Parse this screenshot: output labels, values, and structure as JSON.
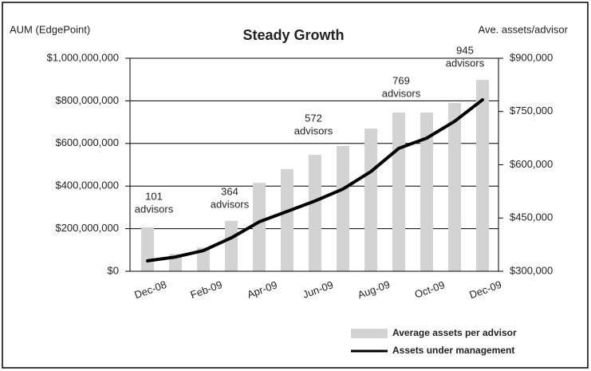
{
  "chart_data": {
    "type": "bar-line",
    "title": "Steady Growth",
    "y_label": "AUM (EdgePoint)",
    "y2_label": "Ave. assets/advisor",
    "categories": [
      "Dec-08",
      null,
      "Feb-09",
      null,
      "Apr-09",
      null,
      "Jun-09",
      null,
      "Aug-09",
      null,
      "Oct-09",
      null,
      "Dec-09"
    ],
    "series": [
      {
        "name": "Average assets per advisor",
        "color": "#d3d3d3",
        "axis": "y2",
        "type": "bar",
        "values": [
          424000,
          349000,
          367000,
          442000,
          549000,
          588000,
          628000,
          653000,
          702000,
          747000,
          747000,
          774000,
          839000
        ]
      },
      {
        "name": "Assets under management",
        "color": "#000000",
        "axis": "y",
        "type": "line",
        "values": [
          49000000,
          67000000,
          97000000,
          157000000,
          232000000,
          281000000,
          330000000,
          386000000,
          468000000,
          577000000,
          625000000,
          704000000,
          805000000
        ]
      }
    ],
    "ylim": [
      0,
      1000000000
    ],
    "yticks": [
      {
        "value": 0,
        "label": "$0"
      },
      {
        "value": 200000000,
        "label": "$200,000,000"
      },
      {
        "value": 400000000,
        "label": "$400,000,000"
      },
      {
        "value": 600000000,
        "label": "$600,000,000"
      },
      {
        "value": 800000000,
        "label": "$800,000,000"
      },
      {
        "value": 1000000000,
        "label": "$1,000,000,000"
      }
    ],
    "y2lim": [
      300000,
      900000
    ],
    "y2ticks": [
      {
        "value": 300000,
        "label": "$300,000"
      },
      {
        "value": 450000,
        "label": "$450,000"
      },
      {
        "value": 600000,
        "label": "$600,000"
      },
      {
        "value": 750000,
        "label": "$750,000"
      },
      {
        "value": 900000,
        "label": "$900,000"
      }
    ],
    "grid": true,
    "annotations": [
      {
        "lines": [
          "101",
          "advisors"
        ]
      },
      {
        "lines": [
          "364",
          "advisors"
        ]
      },
      {
        "lines": [
          "572",
          "advisors"
        ]
      },
      {
        "lines": [
          "769",
          "advisors"
        ]
      },
      {
        "lines": [
          "945",
          "advisors"
        ]
      }
    ]
  }
}
